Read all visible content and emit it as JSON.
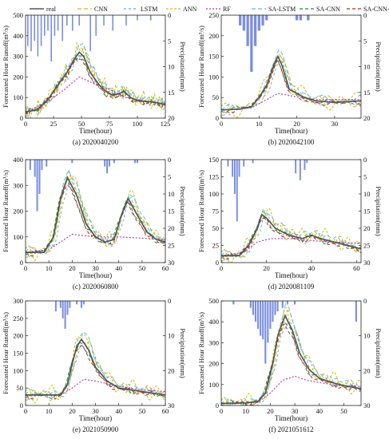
{
  "legend": {
    "entries": [
      {
        "label": "real",
        "color": "#555555",
        "dash": ""
      },
      {
        "label": "CNN",
        "color": "#d4b700",
        "dash": "5,3"
      },
      {
        "label": "LSTM",
        "color": "#5ab0e0",
        "dash": "3,3"
      },
      {
        "label": "ANN",
        "color": "#c9c000",
        "dash": "3,2"
      },
      {
        "label": "RF",
        "color": "#b030c0",
        "dash": "2,2"
      },
      {
        "label": "SA-LSTM",
        "color": "#60b8e8",
        "dash": "5,3"
      },
      {
        "label": "SA-CNN",
        "color": "#1a8a4a",
        "dash": "4,3"
      },
      {
        "label": "SA-CNN-LSTM",
        "color": "#c02020",
        "dash": "4,3"
      }
    ]
  },
  "chart_data": [
    {
      "type": "line",
      "caption": "(a) 2020040200",
      "xlabel": "Time(hour)",
      "ylabel": "Forecasted Hour Runoff(m³/s)",
      "y2label": "Precipitation(mm)",
      "xlim": [
        0,
        125
      ],
      "xticks": [
        0,
        25,
        50,
        75,
        100,
        125
      ],
      "ylim": [
        0,
        500
      ],
      "yticks": [
        0,
        100,
        200,
        300,
        400,
        500
      ],
      "y2lim": [
        20,
        0
      ],
      "y2ticks": [
        0,
        5,
        10,
        15,
        20
      ],
      "real": [
        [
          0,
          30
        ],
        [
          10,
          40
        ],
        [
          20,
          90
        ],
        [
          30,
          170
        ],
        [
          38,
          230
        ],
        [
          44,
          290
        ],
        [
          48,
          320
        ],
        [
          52,
          300
        ],
        [
          58,
          220
        ],
        [
          66,
          160
        ],
        [
          72,
          130
        ],
        [
          78,
          110
        ],
        [
          84,
          120
        ],
        [
          88,
          130
        ],
        [
          94,
          100
        ],
        [
          100,
          85
        ],
        [
          110,
          80
        ],
        [
          118,
          75
        ],
        [
          125,
          65
        ]
      ],
      "rf": [
        [
          0,
          30
        ],
        [
          20,
          80
        ],
        [
          35,
          140
        ],
        [
          48,
          200
        ],
        [
          60,
          170
        ],
        [
          75,
          140
        ],
        [
          90,
          100
        ],
        [
          105,
          85
        ],
        [
          125,
          70
        ]
      ],
      "precip": [
        [
          2,
          6
        ],
        [
          5,
          7
        ],
        [
          8,
          5
        ],
        [
          11,
          8
        ],
        [
          14,
          6
        ],
        [
          17,
          4
        ],
        [
          20,
          3
        ],
        [
          23,
          9
        ],
        [
          26,
          4
        ],
        [
          29,
          3
        ],
        [
          33,
          5
        ],
        [
          37,
          2
        ],
        [
          42,
          3
        ],
        [
          48,
          2
        ],
        [
          58,
          7
        ],
        [
          63,
          4
        ],
        [
          70,
          2
        ],
        [
          78,
          3
        ],
        [
          90,
          2
        ],
        [
          100,
          1
        ],
        [
          112,
          1
        ]
      ]
    },
    {
      "type": "line",
      "caption": "(b) 2020042100",
      "xlabel": "Time(hour)",
      "ylabel": "Forecasted Hour Runoff(m³/s)",
      "y2label": "Precipitation(mm)",
      "xlim": [
        0,
        37
      ],
      "xticks": [
        0,
        10,
        20,
        30
      ],
      "ylim": [
        0,
        250
      ],
      "yticks": [
        0,
        50,
        100,
        150,
        200,
        250
      ],
      "y2lim": [
        20,
        0
      ],
      "y2ticks": [
        0,
        5,
        10,
        15,
        20
      ],
      "real": [
        [
          0,
          20
        ],
        [
          5,
          22
        ],
        [
          8,
          28
        ],
        [
          10,
          50
        ],
        [
          12,
          80
        ],
        [
          14,
          130
        ],
        [
          15,
          150
        ],
        [
          16,
          130
        ],
        [
          18,
          70
        ],
        [
          20,
          60
        ],
        [
          22,
          50
        ],
        [
          25,
          42
        ],
        [
          30,
          38
        ],
        [
          37,
          42
        ]
      ],
      "rf": [
        [
          0,
          20
        ],
        [
          8,
          25
        ],
        [
          12,
          45
        ],
        [
          15,
          60
        ],
        [
          18,
          55
        ],
        [
          24,
          45
        ],
        [
          37,
          45
        ]
      ],
      "precip": [
        [
          5,
          2
        ],
        [
          6,
          3
        ],
        [
          7,
          6
        ],
        [
          8,
          11
        ],
        [
          9,
          6
        ],
        [
          10,
          3
        ],
        [
          11,
          2
        ],
        [
          12,
          1
        ],
        [
          20,
          1
        ],
        [
          21,
          1
        ],
        [
          23,
          1
        ]
      ]
    },
    {
      "type": "line",
      "caption": "(c) 2020060800",
      "xlabel": "Time(hour)",
      "ylabel": "Forecasted Hour Runoff(m³/s)",
      "y2label": "Precipitation(mm)",
      "xlim": [
        0,
        60
      ],
      "xticks": [
        0,
        10,
        20,
        30,
        40,
        50,
        60
      ],
      "ylim": [
        0,
        400
      ],
      "yticks": [
        0,
        100,
        200,
        300,
        400
      ],
      "y2lim": [
        30,
        0
      ],
      "y2ticks": [
        0,
        5,
        10,
        15,
        20,
        25,
        30
      ],
      "real": [
        [
          0,
          40
        ],
        [
          8,
          40
        ],
        [
          12,
          100
        ],
        [
          15,
          250
        ],
        [
          18,
          330
        ],
        [
          22,
          260
        ],
        [
          26,
          150
        ],
        [
          30,
          100
        ],
        [
          34,
          80
        ],
        [
          38,
          90
        ],
        [
          41,
          180
        ],
        [
          44,
          250
        ],
        [
          47,
          200
        ],
        [
          52,
          120
        ],
        [
          56,
          90
        ],
        [
          60,
          80
        ]
      ],
      "rf": [
        [
          0,
          40
        ],
        [
          10,
          50
        ],
        [
          15,
          80
        ],
        [
          20,
          110
        ],
        [
          30,
          100
        ],
        [
          40,
          100
        ],
        [
          50,
          95
        ],
        [
          60,
          90
        ]
      ],
      "precip": [
        [
          2,
          3
        ],
        [
          4,
          5
        ],
        [
          5,
          15
        ],
        [
          6,
          10
        ],
        [
          7,
          3
        ],
        [
          9,
          2
        ],
        [
          20,
          1
        ],
        [
          34,
          2
        ],
        [
          35,
          4
        ],
        [
          36,
          2
        ],
        [
          38,
          1
        ],
        [
          47,
          1
        ],
        [
          48,
          1
        ]
      ]
    },
    {
      "type": "line",
      "caption": "(d) 2020081109",
      "xlabel": "Time(hour)",
      "ylabel": "Forecasted Hour Runoff(m³/s)",
      "y2label": "Precipitation(mm)",
      "xlim": [
        0,
        62
      ],
      "xticks": [
        0,
        20,
        40,
        60
      ],
      "ylim": [
        0,
        150
      ],
      "yticks": [
        0,
        25,
        50,
        75,
        100,
        125,
        150
      ],
      "y2lim": [
        30,
        0
      ],
      "y2ticks": [
        0,
        5,
        10,
        15,
        20,
        25,
        30
      ],
      "real": [
        [
          0,
          10
        ],
        [
          8,
          10
        ],
        [
          12,
          25
        ],
        [
          16,
          50
        ],
        [
          18,
          70
        ],
        [
          20,
          65
        ],
        [
          24,
          50
        ],
        [
          30,
          40
        ],
        [
          36,
          35
        ],
        [
          40,
          40
        ],
        [
          44,
          35
        ],
        [
          50,
          30
        ],
        [
          56,
          25
        ],
        [
          62,
          20
        ]
      ],
      "rf": [
        [
          0,
          10
        ],
        [
          10,
          15
        ],
        [
          16,
          30
        ],
        [
          22,
          35
        ],
        [
          30,
          35
        ],
        [
          40,
          32
        ],
        [
          50,
          30
        ],
        [
          62,
          28
        ]
      ],
      "precip": [
        [
          3,
          2
        ],
        [
          5,
          5
        ],
        [
          6,
          10
        ],
        [
          7,
          18
        ],
        [
          8,
          5
        ],
        [
          10,
          2
        ],
        [
          14,
          1
        ],
        [
          33,
          4
        ],
        [
          35,
          6
        ],
        [
          37,
          3
        ],
        [
          38,
          1
        ]
      ]
    },
    {
      "type": "line",
      "caption": "(e) 2021050900",
      "xlabel": "Time(hour)",
      "ylabel": "Forecasted Hour Runoff(m³/s)",
      "y2label": "Precipitation(mm)",
      "xlim": [
        0,
        60
      ],
      "xticks": [
        0,
        10,
        20,
        30,
        40,
        50,
        60
      ],
      "ylim": [
        0,
        300
      ],
      "yticks": [
        0,
        50,
        100,
        150,
        200,
        250,
        300
      ],
      "y2lim": [
        30,
        0
      ],
      "y2ticks": [
        0,
        10,
        20,
        30
      ],
      "real": [
        [
          0,
          30
        ],
        [
          10,
          30
        ],
        [
          15,
          30
        ],
        [
          18,
          60
        ],
        [
          20,
          120
        ],
        [
          22,
          170
        ],
        [
          24,
          190
        ],
        [
          27,
          160
        ],
        [
          30,
          110
        ],
        [
          35,
          70
        ],
        [
          40,
          50
        ],
        [
          45,
          45
        ],
        [
          50,
          40
        ],
        [
          55,
          35
        ],
        [
          60,
          30
        ]
      ],
      "rf": [
        [
          0,
          30
        ],
        [
          15,
          30
        ],
        [
          20,
          50
        ],
        [
          25,
          75
        ],
        [
          30,
          70
        ],
        [
          40,
          55
        ],
        [
          50,
          45
        ],
        [
          60,
          40
        ]
      ],
      "precip": [
        [
          13,
          3
        ],
        [
          15,
          2
        ],
        [
          16,
          5
        ],
        [
          17,
          8
        ],
        [
          18,
          4
        ],
        [
          19,
          2
        ],
        [
          22,
          1
        ],
        [
          24,
          2
        ],
        [
          25,
          1
        ]
      ]
    },
    {
      "type": "line",
      "caption": "(f) 2021051612",
      "xlabel": "Time(hour)",
      "ylabel": "Forecasted Hour Runoff(m³/s)",
      "y2label": "Precipitation(mm)",
      "xlim": [
        0,
        57
      ],
      "xticks": [
        0,
        10,
        20,
        30,
        40,
        50
      ],
      "ylim": [
        0,
        500
      ],
      "yticks": [
        0,
        100,
        200,
        300,
        400,
        500
      ],
      "y2lim": [
        30,
        0
      ],
      "y2ticks": [
        0,
        10,
        20,
        30
      ],
      "real": [
        [
          0,
          10
        ],
        [
          10,
          12
        ],
        [
          15,
          20
        ],
        [
          18,
          60
        ],
        [
          21,
          200
        ],
        [
          23,
          330
        ],
        [
          26,
          430
        ],
        [
          29,
          360
        ],
        [
          32,
          250
        ],
        [
          36,
          170
        ],
        [
          40,
          130
        ],
        [
          45,
          110
        ],
        [
          50,
          95
        ],
        [
          57,
          80
        ]
      ],
      "rf": [
        [
          0,
          10
        ],
        [
          15,
          15
        ],
        [
          20,
          60
        ],
        [
          25,
          120
        ],
        [
          30,
          140
        ],
        [
          35,
          120
        ],
        [
          45,
          100
        ],
        [
          57,
          90
        ]
      ],
      "precip": [
        [
          5,
          1
        ],
        [
          12,
          2
        ],
        [
          13,
          4
        ],
        [
          14,
          6
        ],
        [
          15,
          8
        ],
        [
          16,
          10
        ],
        [
          17,
          11
        ],
        [
          18,
          18
        ],
        [
          19,
          12
        ],
        [
          20,
          8
        ],
        [
          21,
          6
        ],
        [
          22,
          4
        ],
        [
          23,
          3
        ],
        [
          25,
          2
        ],
        [
          27,
          1
        ],
        [
          30,
          1
        ],
        [
          55,
          6
        ]
      ]
    }
  ]
}
